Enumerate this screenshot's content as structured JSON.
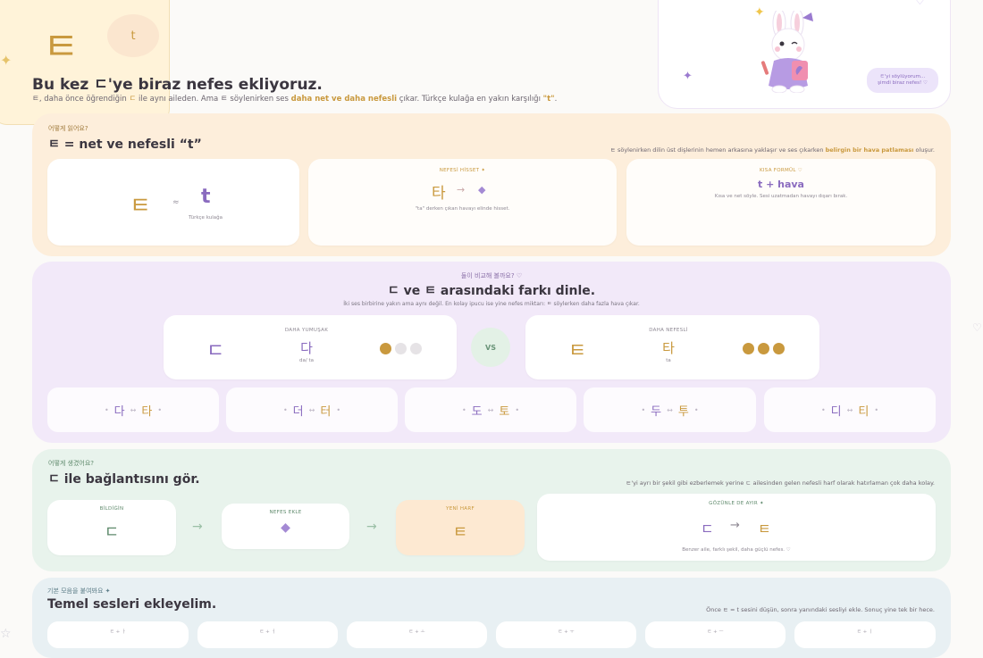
{
  "intro": {
    "big_letter": "ㅌ",
    "bubble_letter": "t",
    "headline": "Bu kez ㄷ'ye biraz nefes ekliyoruz.",
    "sub_pre": "ㅌ, daha önce öğrendiğin ",
    "sub_d": "ㄷ",
    "sub_mid": " ile aynı aileden. Ama ㅌ söylenirken ses ",
    "sub_hl": "daha net ve daha nefesli",
    "sub_post": " çıkar. Türkçe kulağa en yakın karşılığı ",
    "sub_t": "\"t\"",
    "sub_end": "."
  },
  "bunny": {
    "speech": "ㅌ'yi söylüyorum...\nşimdi biraz nefes! ♡"
  },
  "section1": {
    "eyebrow": "어떻게 읽어요?",
    "title": "ㅌ = net ve nefesli “t”",
    "note_pre": "ㅌ söylenirken dilin üst dişlerinin hemen arkasına yaklaşır ve ses çıkarken ",
    "note_hl": "belirgin bir hava patlaması",
    "note_post": " oluşur.",
    "card1": {
      "letter": "ㅌ",
      "approx": "≈",
      "latin": "t",
      "caption": "Türkçe kulağa"
    },
    "card2": {
      "label": "NEFESİ HİSSET ✦",
      "syllable": "타",
      "arrow": "→",
      "caption": "\"ta\" derken çıkan havayı elinde hisset."
    },
    "card3": {
      "label": "KISA FORMÜL ♡",
      "formula": "t + hava",
      "caption": "Kısa ve net söyle. Sesi uzatmadan havayı dışarı bırak."
    }
  },
  "section2": {
    "eyebrow": "둘이 비교해 볼까요? ♡",
    "title": "ㄷ ve ㅌ arasındaki farkı dinle.",
    "subtitle": "İki ses birbirine yakın ama aynı değil. En kolay ipucu ise yine nefes miktarı: ㅌ söylerken daha fazla hava çıkar.",
    "left": {
      "letter": "ㄷ",
      "label": "DAHA YUMUŞAK",
      "syllable": "다",
      "roman": "da/ ta",
      "level": 1
    },
    "vs": "VS",
    "right": {
      "letter": "ㅌ",
      "label": "DAHA NEFESLİ",
      "syllable": "타",
      "roman": "ta",
      "level": 3
    },
    "pairs": [
      {
        "a": "다",
        "arrow": "↔",
        "b": "타"
      },
      {
        "a": "더",
        "arrow": "↔",
        "b": "터"
      },
      {
        "a": "도",
        "arrow": "↔",
        "b": "토"
      },
      {
        "a": "두",
        "arrow": "↔",
        "b": "투"
      },
      {
        "a": "디",
        "arrow": "↔",
        "b": "티"
      }
    ]
  },
  "section3": {
    "eyebrow": "어떻게 생겼어요?",
    "title": "ㄷ ile bağlantısını gör.",
    "note": "ㅌ'yi ayrı bir şekil gibi ezberlemek yerine ㄷ ailesinden gelen nefesli harf olarak hatırlaman çok daha kolay.",
    "steps": [
      {
        "label": "BİLDİĞİN",
        "letter": "ㄷ"
      },
      {
        "label": "NEFES EKLE",
        "letter": ""
      },
      {
        "label": "YENİ HARF",
        "letter": "ㅌ"
      }
    ],
    "arrow": "→",
    "compare": {
      "label": "GÖZÜNLE DE AYIR ✦",
      "from": "ㄷ",
      "arrow": "→",
      "to": "ㅌ",
      "caption": "Benzer aile, farklı şekil, daha güçlü nefes. ♡"
    }
  },
  "section4": {
    "eyebrow": "기본 모음을 붙여봐요 ✦",
    "title": "Temel sesleri ekleyelim.",
    "note": "Önce ㅌ = t sesini düşün, sonra yanındaki sesliyi ekle. Sonuç yine tek bir hece.",
    "cards": [
      "ㅌ + ㅏ",
      "ㅌ + ㅓ",
      "ㅌ + ㅗ",
      "ㅌ + ㅜ",
      "ㅌ + ㅡ",
      "ㅌ + ㅣ"
    ]
  },
  "colors": {
    "gold": "#c9993e",
    "purple": "#8a6bbf",
    "green": "#5f8a6c"
  }
}
